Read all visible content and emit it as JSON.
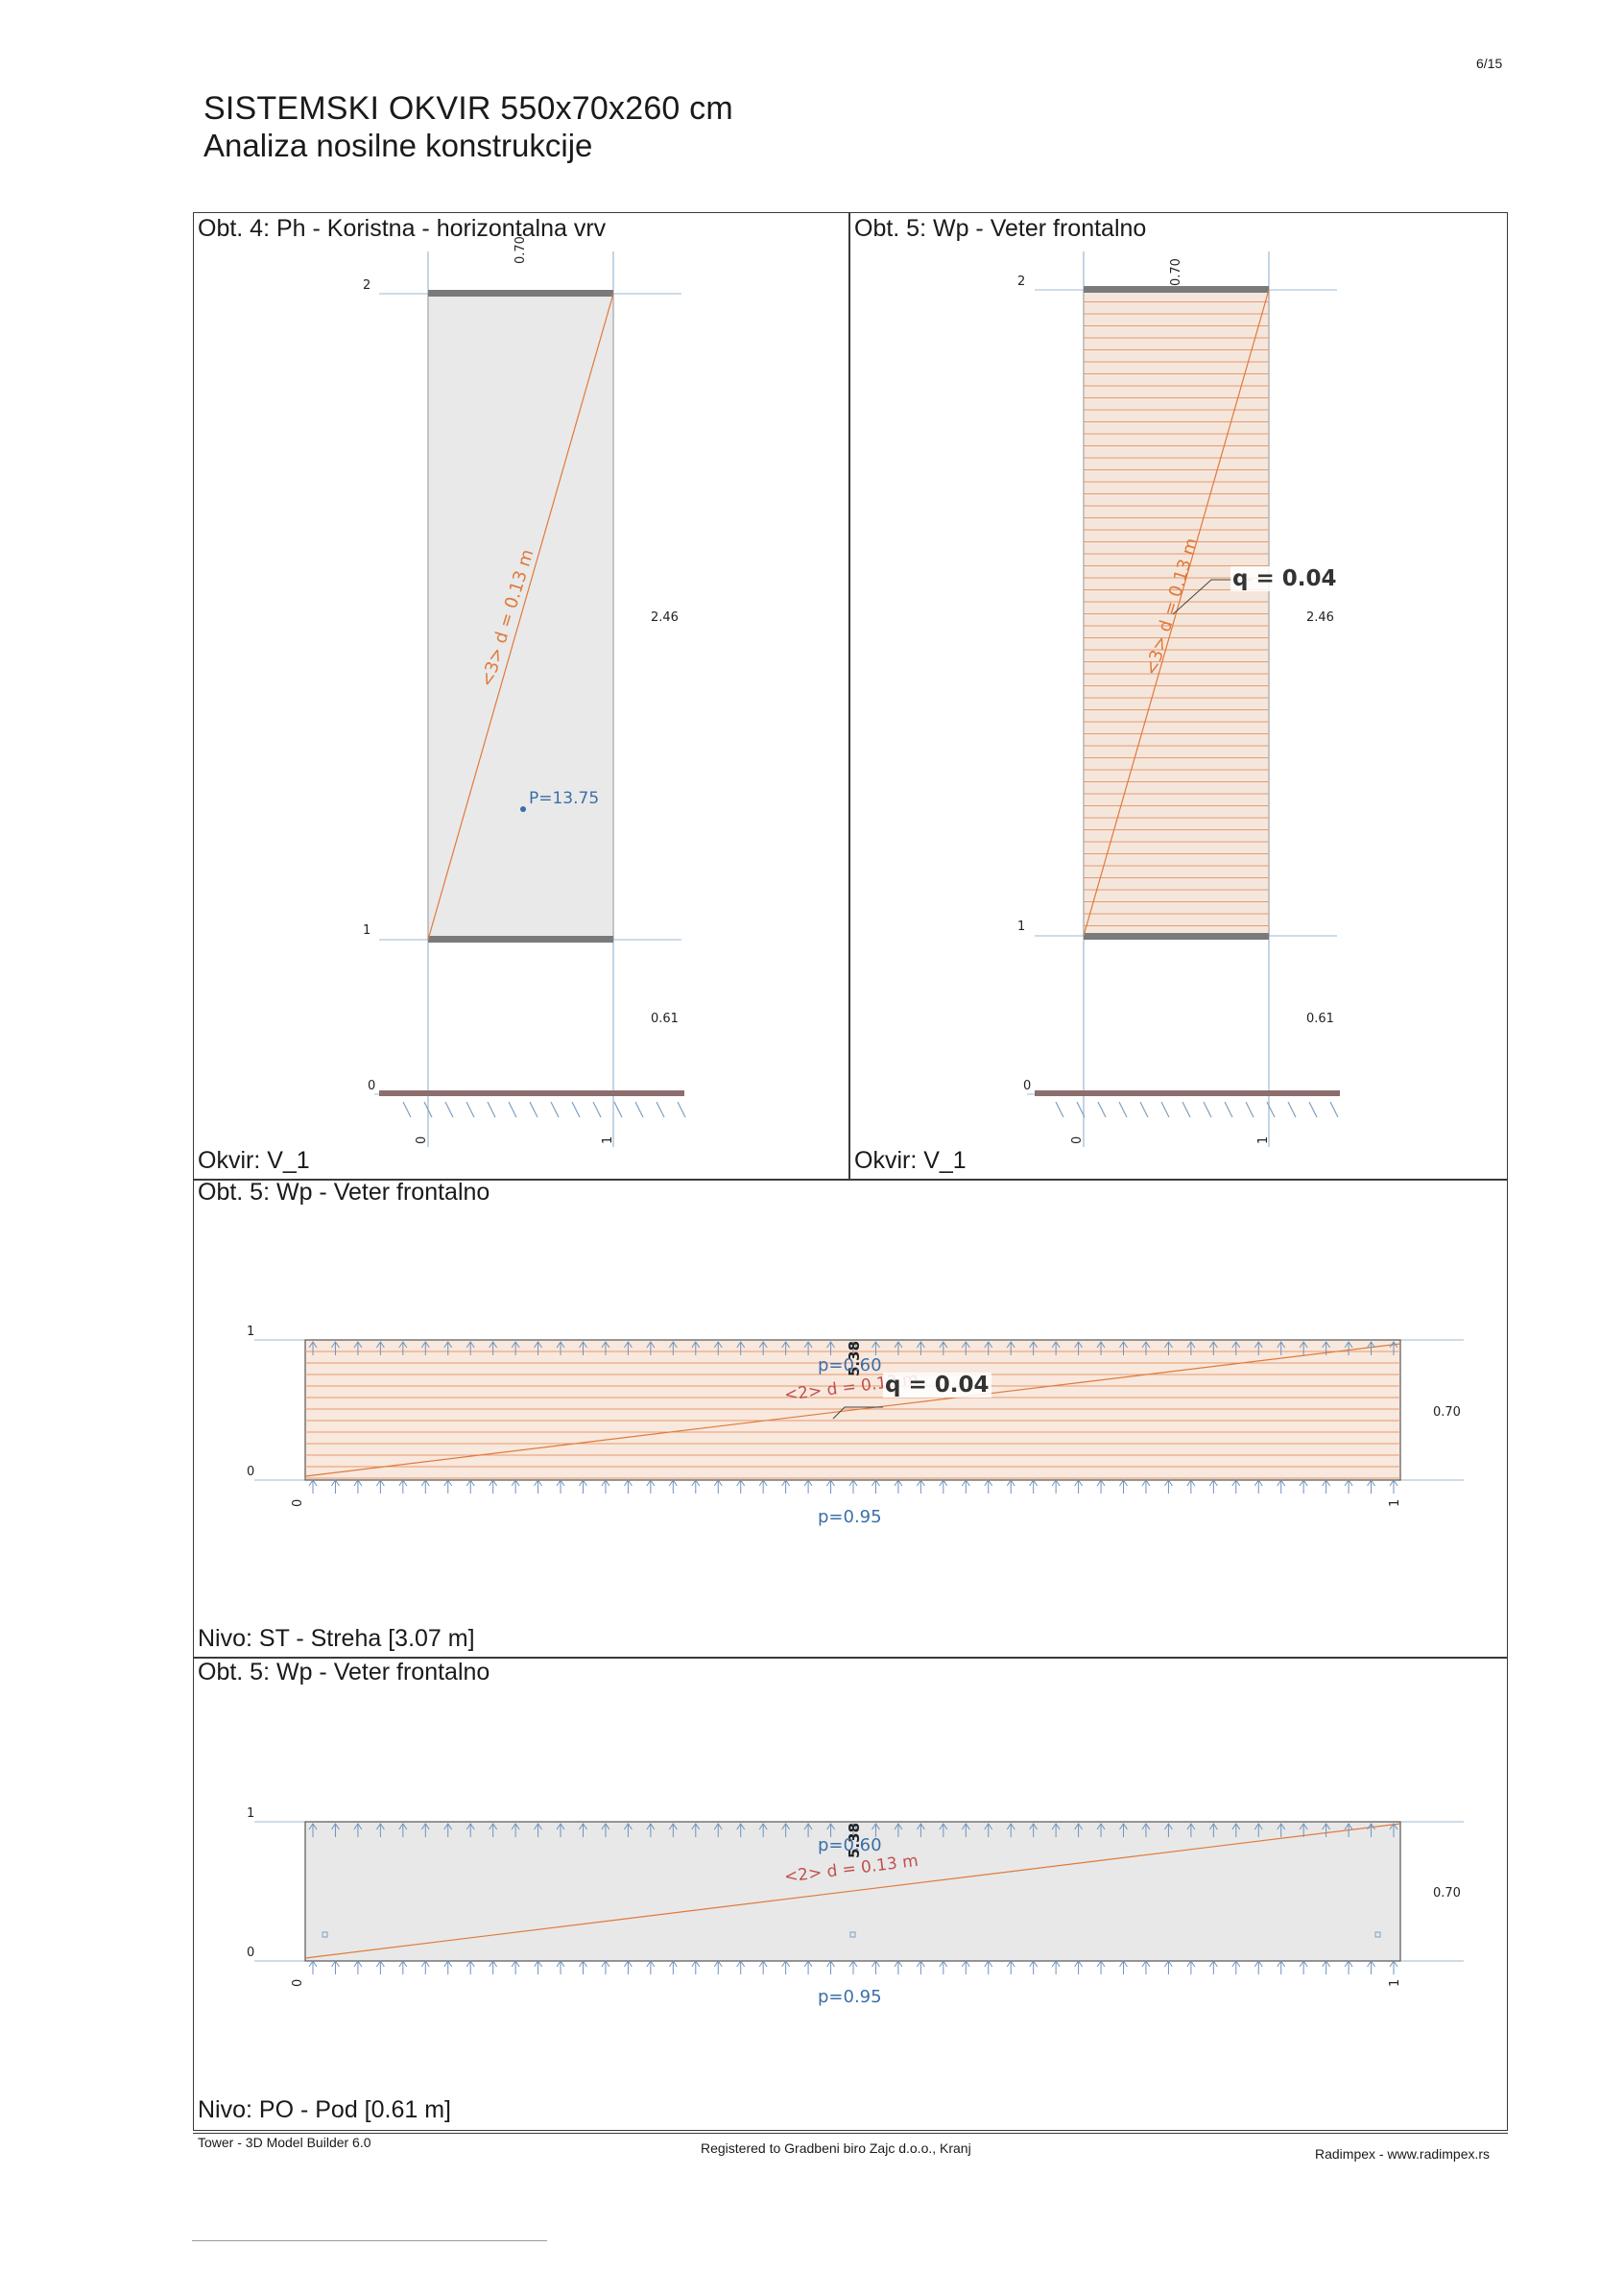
{
  "page": {
    "page_number": "6/15",
    "title_line1": "SISTEMSKI OKVIR 550x70x260 cm",
    "title_line2": "Analiza nosilne konstrukcije"
  },
  "panel_left": {
    "header": "Obt. 4: Ph - Koristna - horizontalna vrv",
    "footer": "Okvir: V_1",
    "level_top": "2",
    "level_mid": "1",
    "level_bottom": "0",
    "dim_top": "0.70",
    "dim_upper": "2.46",
    "dim_lower": "0.61",
    "axis_left": "0",
    "axis_right": "1",
    "member_label": "<3> d = 0.13 m",
    "point_load": "P=13.75"
  },
  "panel_right": {
    "header": "Obt. 5: Wp -  Veter frontalno",
    "footer": "Okvir: V_1",
    "level_top": "2",
    "level_mid": "1",
    "level_bottom": "0",
    "dim_top": "0.70",
    "dim_upper": "2.46",
    "dim_lower": "0.61",
    "axis_left": "0",
    "axis_right": "1",
    "member_label": "<3> d = 0.13 m",
    "load_label": "q = 0.04"
  },
  "panel_roof": {
    "header": "Obt. 5: Wp -  Veter frontalno",
    "footer": "Nivo: ST - Streha [3.07 m]",
    "level_top": "1",
    "level_bottom": "0",
    "axis_left": "0",
    "axis_right": "1",
    "dim_right": "0.70",
    "span_label": "5.38",
    "p_top": "p=0.60",
    "p_bottom": "p=0.95",
    "member_label": "<2> d = 0.13 m",
    "load_label": "q = 0.04"
  },
  "panel_floor": {
    "header": "Obt. 5: Wp -  Veter frontalno",
    "footer": "Nivo: PO - Pod [0.61 m]",
    "level_top": "1",
    "level_bottom": "0",
    "axis_left": "0",
    "axis_right": "1",
    "dim_right": "0.70",
    "span_label": "5.38",
    "p_top": "p=0.60",
    "p_bottom": "p=0.95",
    "member_label": "<2> d = 0.13 m"
  },
  "footer": {
    "software": "Tower - 3D Model Builder 6.0",
    "registration": "Registered to Gradbeni biro Zajc d.o.o., Kranj",
    "vendor": "Radimpex - www.radimpex.rs"
  },
  "colors": {
    "load_orange": "#e07a3a",
    "dimension_blue": "#8fb0d0",
    "label_blue": "#3a6fa8",
    "label_red": "#c0504d",
    "slab_gray": "#e8e8e8"
  }
}
